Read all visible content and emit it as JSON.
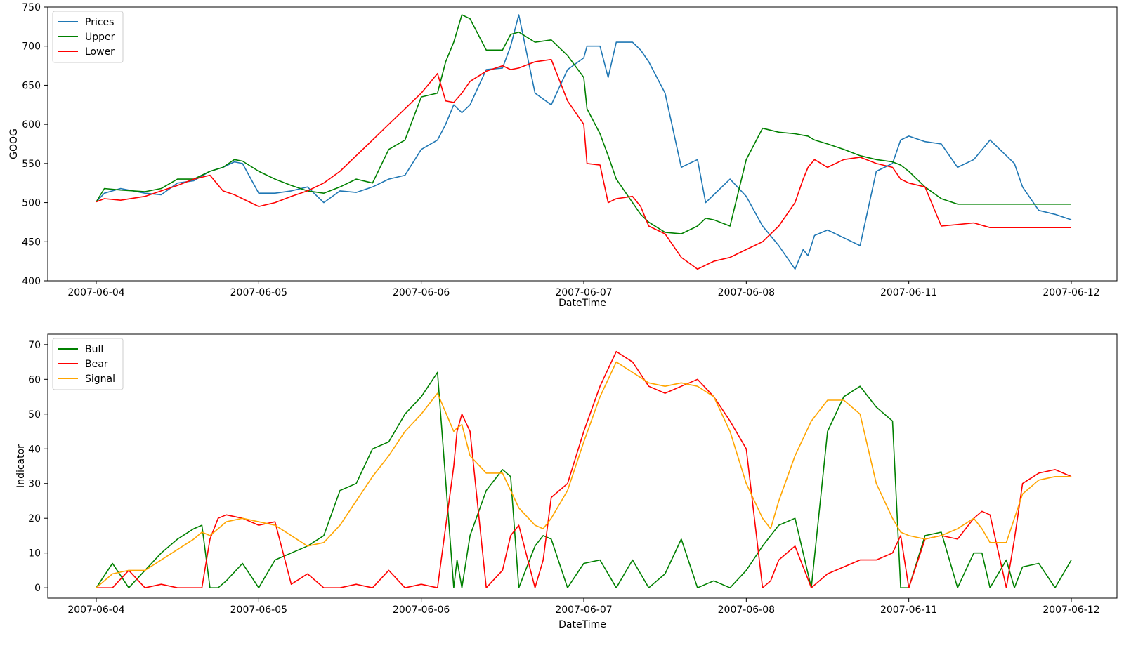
{
  "colors": {
    "prices": "#1f77b4",
    "upper": "#008000",
    "lower": "#ff0000",
    "bull": "#008000",
    "bear": "#ff0000",
    "signal": "#ffa500"
  },
  "chart_data": [
    {
      "type": "line",
      "xlabel": "DateTime",
      "ylabel": "GOOG",
      "x_ticks": [
        "2007-06-04",
        "2007-06-05",
        "2007-06-06",
        "2007-06-07",
        "2007-06-08",
        "2007-06-11",
        "2007-06-12"
      ],
      "ylim": [
        400,
        750
      ],
      "y_ticks": [
        400,
        450,
        500,
        550,
        600,
        650,
        700,
        750
      ],
      "legend_position": "top-left",
      "grid": false,
      "x_index": [
        0,
        0.05,
        0.15,
        0.3,
        0.4,
        0.5,
        0.6,
        0.7,
        0.78,
        0.85,
        0.9,
        1.0,
        1.1,
        1.2,
        1.3,
        1.4,
        1.5,
        1.6,
        1.7,
        1.8,
        1.9,
        2.0,
        2.1,
        2.15,
        2.2,
        2.25,
        2.3,
        2.4,
        2.5,
        2.55,
        2.6,
        2.7,
        2.8,
        2.9,
        3.0,
        3.02,
        3.1,
        3.15,
        3.2,
        3.3,
        3.35,
        3.4,
        3.5,
        3.6,
        3.7,
        3.75,
        3.8,
        3.9,
        4.0,
        4.1,
        4.2,
        4.3,
        4.35,
        4.38,
        4.42,
        4.5,
        4.6,
        4.7,
        4.8,
        4.9,
        4.95,
        5.0,
        5.1,
        5.2,
        5.3,
        5.4,
        5.5,
        5.6,
        5.65,
        5.7,
        5.8,
        5.9,
        6.0
      ],
      "series": [
        {
          "name": "Prices",
          "values": [
            501,
            512,
            518,
            512,
            510,
            525,
            528,
            540,
            545,
            552,
            550,
            512,
            512,
            515,
            520,
            500,
            515,
            513,
            520,
            530,
            535,
            568,
            580,
            600,
            625,
            615,
            625,
            670,
            672,
            700,
            740,
            640,
            625,
            670,
            685,
            700,
            700,
            660,
            705,
            705,
            695,
            680,
            640,
            545,
            555,
            500,
            510,
            530,
            508,
            470,
            445,
            415,
            440,
            432,
            458,
            465,
            455,
            445,
            540,
            550,
            580,
            585,
            578,
            575,
            545,
            555,
            580,
            560,
            550,
            520,
            490,
            485,
            478
          ]
        },
        {
          "name": "Upper",
          "values": [
            501,
            518,
            516,
            514,
            518,
            530,
            530,
            540,
            545,
            555,
            553,
            540,
            530,
            522,
            515,
            512,
            520,
            530,
            525,
            568,
            580,
            635,
            640,
            680,
            705,
            740,
            735,
            695,
            695,
            715,
            718,
            705,
            708,
            688,
            660,
            620,
            588,
            560,
            530,
            500,
            485,
            475,
            462,
            460,
            470,
            480,
            478,
            470,
            555,
            595,
            590,
            588,
            586,
            585,
            580,
            575,
            568,
            560,
            555,
            552,
            548,
            540,
            520,
            505,
            498,
            498,
            498,
            498,
            498,
            498,
            498,
            498,
            498
          ]
        },
        {
          "name": "Lower",
          "values": [
            501,
            505,
            503,
            508,
            515,
            522,
            530,
            535,
            515,
            510,
            505,
            495,
            500,
            508,
            515,
            525,
            540,
            560,
            580,
            600,
            620,
            640,
            665,
            630,
            628,
            640,
            655,
            668,
            675,
            670,
            672,
            680,
            683,
            630,
            600,
            550,
            548,
            500,
            505,
            508,
            495,
            470,
            460,
            430,
            415,
            420,
            425,
            430,
            440,
            450,
            470,
            500,
            530,
            545,
            555,
            545,
            555,
            558,
            550,
            545,
            530,
            525,
            520,
            470,
            472,
            474,
            468,
            468,
            468,
            468,
            468,
            468,
            468
          ]
        }
      ]
    },
    {
      "type": "line",
      "xlabel": "DateTime",
      "ylabel": "Indicator",
      "x_ticks": [
        "2007-06-04",
        "2007-06-05",
        "2007-06-06",
        "2007-06-07",
        "2007-06-08",
        "2007-06-11",
        "2007-06-12"
      ],
      "ylim": [
        -3,
        73
      ],
      "y_ticks": [
        0,
        10,
        20,
        30,
        40,
        50,
        60,
        70
      ],
      "legend_position": "top-left",
      "grid": false,
      "x_index": [
        0,
        0.1,
        0.2,
        0.3,
        0.4,
        0.5,
        0.6,
        0.65,
        0.7,
        0.75,
        0.8,
        0.9,
        1.0,
        1.1,
        1.2,
        1.3,
        1.4,
        1.5,
        1.6,
        1.7,
        1.8,
        1.9,
        2.0,
        2.1,
        2.2,
        2.22,
        2.25,
        2.3,
        2.4,
        2.5,
        2.55,
        2.6,
        2.7,
        2.75,
        2.8,
        2.9,
        3.0,
        3.1,
        3.2,
        3.3,
        3.4,
        3.5,
        3.6,
        3.7,
        3.8,
        3.9,
        4.0,
        4.1,
        4.15,
        4.2,
        4.3,
        4.4,
        4.5,
        4.6,
        4.7,
        4.8,
        4.9,
        4.95,
        5.0,
        5.1,
        5.2,
        5.3,
        5.4,
        5.45,
        5.5,
        5.6,
        5.65,
        5.7,
        5.8,
        5.9,
        6.0
      ],
      "series": [
        {
          "name": "Bull",
          "values": [
            0,
            7,
            0,
            5,
            10,
            14,
            17,
            18,
            0,
            0,
            2,
            7,
            0,
            8,
            10,
            12,
            15,
            28,
            30,
            40,
            42,
            50,
            55,
            62,
            0,
            8,
            0,
            15,
            28,
            34,
            32,
            0,
            12,
            15,
            14,
            0,
            7,
            8,
            0,
            8,
            0,
            4,
            14,
            0,
            2,
            0,
            5,
            12,
            15,
            18,
            20,
            0,
            45,
            55,
            58,
            52,
            48,
            0,
            0,
            15,
            16,
            0,
            10,
            10,
            0,
            8,
            0,
            6,
            7,
            0,
            8
          ]
        },
        {
          "name": "Bear",
          "values": [
            0,
            0,
            5,
            0,
            1,
            0,
            0,
            0,
            14,
            20,
            21,
            20,
            18,
            19,
            1,
            4,
            0,
            0,
            1,
            0,
            5,
            0,
            1,
            0,
            35,
            45,
            50,
            45,
            0,
            5,
            15,
            18,
            0,
            8,
            26,
            30,
            45,
            58,
            68,
            65,
            58,
            56,
            58,
            60,
            55,
            48,
            40,
            0,
            2,
            8,
            12,
            0,
            4,
            6,
            8,
            8,
            10,
            15,
            0,
            14,
            15,
            14,
            20,
            22,
            21,
            0,
            14,
            30,
            33,
            34,
            32
          ]
        },
        {
          "name": "Signal",
          "values": [
            0,
            4,
            5,
            5,
            8,
            11,
            14,
            16,
            15,
            17,
            19,
            20,
            19,
            18,
            15,
            12,
            13,
            18,
            25,
            32,
            38,
            45,
            50,
            56,
            45,
            46,
            47,
            38,
            33,
            33,
            28,
            23,
            18,
            17,
            20,
            28,
            42,
            55,
            65,
            62,
            59,
            58,
            59,
            58,
            55,
            45,
            30,
            20,
            17,
            25,
            38,
            48,
            54,
            54,
            50,
            30,
            20,
            16,
            15,
            14,
            15,
            17,
            20,
            17,
            13,
            13,
            20,
            27,
            31,
            32,
            32
          ]
        }
      ]
    }
  ]
}
